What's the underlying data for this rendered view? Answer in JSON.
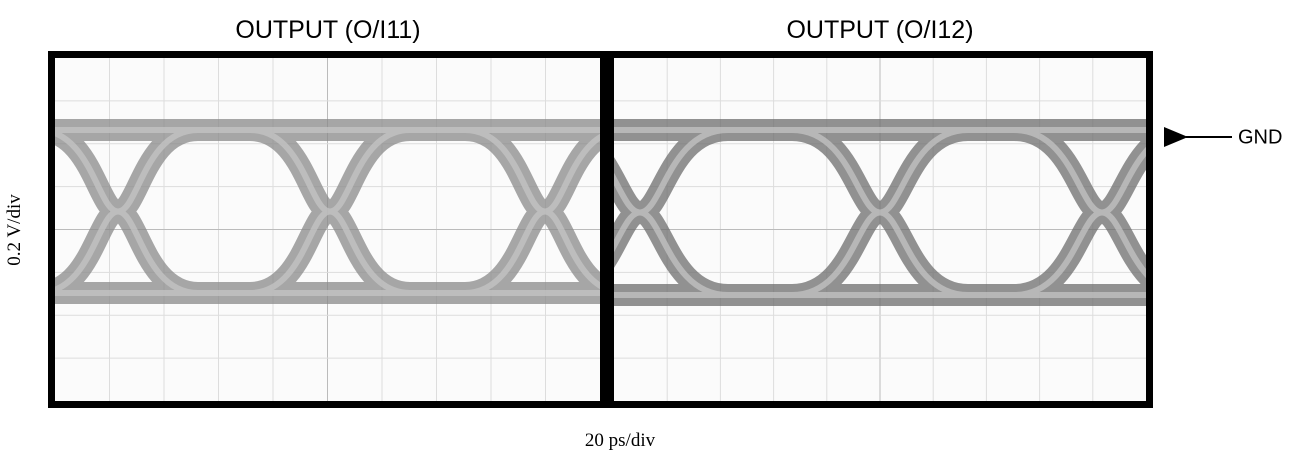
{
  "panels": [
    {
      "title": "OUTPUT (O/I11)"
    },
    {
      "title": "OUTPUT (O/I12)"
    }
  ],
  "y_label": "0.2 V/div",
  "x_label": "20 ps/div",
  "marker": "GND"
}
